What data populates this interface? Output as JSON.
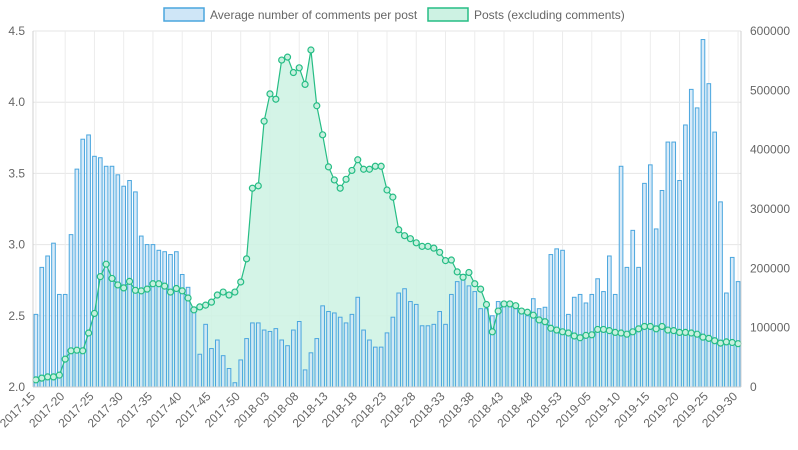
{
  "chart_data": {
    "type": "bar",
    "legend_position": "top",
    "grid": true,
    "series": [
      {
        "name": "Average number of comments per post",
        "kind": "bar",
        "axis": "left",
        "fill": "#cfe6f7",
        "stroke": "#4aa6de",
        "values": [
          2.51,
          2.84,
          2.92,
          3.01,
          2.65,
          2.65,
          3.07,
          3.53,
          3.74,
          3.77,
          3.62,
          3.61,
          3.55,
          3.55,
          3.49,
          3.41,
          3.45,
          3.37,
          3.06,
          3.0,
          3.0,
          2.96,
          2.95,
          2.93,
          2.95,
          2.79,
          2.7,
          2.56,
          2.23,
          2.44,
          2.27,
          2.33,
          2.22,
          2.13,
          2.03,
          2.19,
          2.34,
          2.45,
          2.45,
          2.4,
          2.39,
          2.41,
          2.33,
          2.29,
          2.4,
          2.46,
          2.12,
          2.24,
          2.34,
          2.57,
          2.53,
          2.52,
          2.49,
          2.45,
          2.51,
          2.63,
          2.4,
          2.33,
          2.28,
          2.28,
          2.38,
          2.49,
          2.66,
          2.69,
          2.6,
          2.58,
          2.43,
          2.43,
          2.44,
          2.53,
          2.44,
          2.65,
          2.74,
          2.79,
          2.71,
          2.67,
          2.55,
          2.55,
          2.5,
          2.6,
          2.59,
          2.57,
          2.55,
          2.52,
          2.5,
          2.62,
          2.55,
          2.56,
          2.93,
          2.97,
          2.96,
          2.51,
          2.63,
          2.65,
          2.59,
          2.65,
          2.76,
          2.67,
          2.92,
          2.65,
          3.55,
          2.84,
          3.1,
          2.84,
          3.43,
          3.56,
          3.11,
          3.38,
          3.72,
          3.72,
          3.45,
          3.84,
          4.09,
          3.96,
          4.44,
          4.13,
          3.79,
          3.3,
          2.66,
          2.91,
          2.74
        ]
      },
      {
        "name": "Posts (excluding comments)",
        "kind": "line",
        "axis": "right",
        "fill": "#cdf2e3",
        "stroke": "#26bd85",
        "values": [
          12000,
          15000,
          17000,
          17000,
          20000,
          47000,
          61000,
          62000,
          61000,
          91000,
          124000,
          186000,
          207000,
          183000,
          172000,
          167000,
          178000,
          163000,
          162000,
          165000,
          174000,
          174000,
          170000,
          160000,
          166000,
          162000,
          150000,
          130000,
          135000,
          138000,
          143000,
          155000,
          160000,
          155000,
          160000,
          177000,
          216000,
          335000,
          339000,
          448000,
          494000,
          485000,
          551000,
          556000,
          530000,
          538000,
          510000,
          568000,
          474000,
          425000,
          371000,
          349000,
          335000,
          350000,
          365000,
          383000,
          367000,
          367000,
          372000,
          372000,
          332000,
          320000,
          265000,
          255000,
          250000,
          243000,
          237000,
          237000,
          234000,
          227000,
          213000,
          214000,
          194000,
          185000,
          193000,
          174000,
          165000,
          139000,
          93000,
          128000,
          140000,
          140000,
          137000,
          128000,
          126000,
          121000,
          113000,
          110000,
          99000,
          96000,
          93000,
          91000,
          86000,
          83000,
          87000,
          88000,
          97000,
          97000,
          95000,
          92000,
          91000,
          89000,
          93000,
          98000,
          102000,
          102000,
          98000,
          102000,
          96000,
          95000,
          92000,
          92000,
          91000,
          89000,
          84000,
          82000,
          78000,
          74000,
          76000,
          75000,
          73000
        ]
      }
    ],
    "x_tick_labels": [
      "2017-15",
      "2017-20",
      "2017-25",
      "2017-30",
      "2017-35",
      "2017-40",
      "2017-45",
      "2017-50",
      "2018-03",
      "2018-08",
      "2018-13",
      "2018-18",
      "2018-23",
      "2018-28",
      "2018-33",
      "2018-38",
      "2018-43",
      "2018-48",
      "2018-53",
      "2019-05",
      "2019-10",
      "2019-15",
      "2019-20",
      "2019-25",
      "2019-30"
    ],
    "y_left": {
      "min": 2.0,
      "max": 4.5,
      "ticks": [
        "2.0",
        "2.5",
        "3.0",
        "3.5",
        "4.0",
        "4.5"
      ]
    },
    "y_right": {
      "min": 0,
      "max": 600000,
      "ticks": [
        "0",
        "100000",
        "200000",
        "300000",
        "400000",
        "500000",
        "600000"
      ]
    }
  }
}
